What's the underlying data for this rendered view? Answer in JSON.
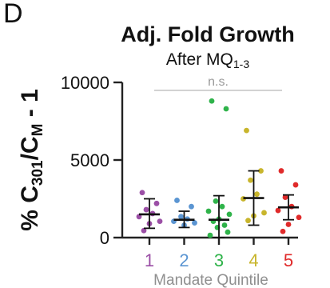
{
  "panel_label": "D",
  "chart_data": {
    "type": "scatter",
    "title": "Adj. Fold Growth",
    "subtitle": {
      "text": "After MQ",
      "subscript": "1-3"
    },
    "ylabel": {
      "prefix": "% C",
      "sub1": "301",
      "mid": "/C",
      "sub2": "M",
      "suffix": " - 1"
    },
    "xlabel": "Mandate Quintile",
    "ylim": [
      0,
      10000
    ],
    "yticks": [
      0,
      5000,
      10000
    ],
    "ytick_labels": [
      "0",
      "5000",
      "10000"
    ],
    "significance_label": "n.s.",
    "categories": [
      "1",
      "2",
      "3",
      "4",
      "5"
    ],
    "colors": [
      "#9b4fa6",
      "#5b95d2",
      "#2fb34a",
      "#c8b52c",
      "#e02a2a"
    ],
    "series": [
      {
        "category": "1",
        "mean": 1500,
        "sd_low": 600,
        "sd_high": 2500,
        "points": [
          2900,
          2200,
          1800,
          1550,
          1350,
          1050,
          900,
          450
        ]
      },
      {
        "category": "2",
        "mean": 1150,
        "sd_low": 650,
        "sd_high": 1700,
        "points": [
          2400,
          2000,
          1350,
          1200,
          1050,
          950,
          800
        ]
      },
      {
        "category": "3",
        "mean": 1150,
        "sd_low": 0,
        "sd_high": 2700,
        "points": [
          8800,
          8300,
          2350,
          2000,
          1700,
          1500,
          1200,
          1050,
          800,
          650,
          350,
          150
        ]
      },
      {
        "category": "4",
        "mean": 2550,
        "sd_low": 800,
        "sd_high": 4300,
        "points": [
          6900,
          4300,
          3700,
          2800,
          2500,
          1600,
          1400,
          1100
        ]
      },
      {
        "category": "5",
        "mean": 1950,
        "sd_low": 1150,
        "sd_high": 2750,
        "points": [
          4300,
          3400,
          2600,
          2000,
          1750,
          1300,
          850,
          400
        ]
      }
    ]
  }
}
